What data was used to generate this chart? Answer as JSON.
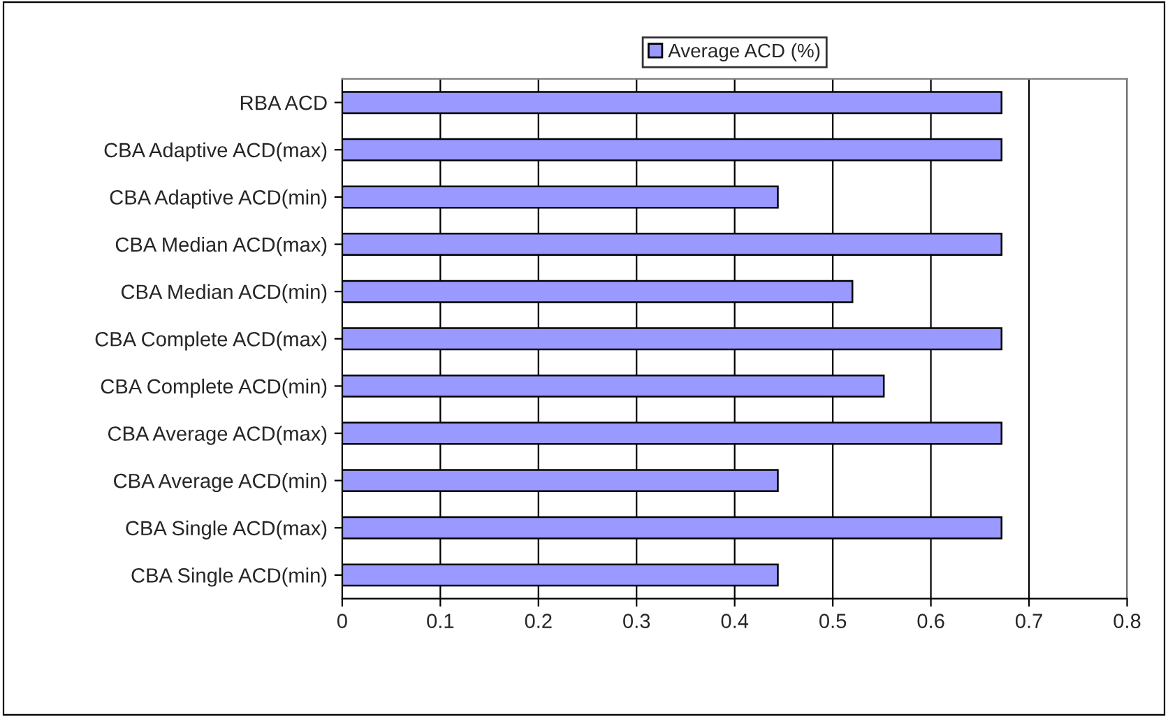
{
  "chart_data": {
    "type": "bar",
    "orientation": "horizontal",
    "categories": [
      "RBA ACD",
      "CBA Adaptive ACD(max)",
      "CBA Adaptive ACD(min)",
      "CBA Median ACD(max)",
      "CBA Median ACD(min)",
      "CBA Complete ACD(max)",
      "CBA Complete ACD(min)",
      "CBA Average ACD(max)",
      "CBA Average ACD(min)",
      "CBA Single ACD(max)",
      "CBA Single ACD(min)"
    ],
    "series": [
      {
        "name": "Average ACD (%)",
        "color": "#9999ff",
        "values": [
          0.672,
          0.672,
          0.444,
          0.672,
          0.52,
          0.672,
          0.552,
          0.672,
          0.444,
          0.672,
          0.444
        ]
      }
    ],
    "xlim": [
      0,
      0.8
    ],
    "xticks": [
      0,
      0.1,
      0.2,
      0.3,
      0.4,
      0.5,
      0.6,
      0.7,
      0.8
    ],
    "grid": "x",
    "legend": "top"
  }
}
